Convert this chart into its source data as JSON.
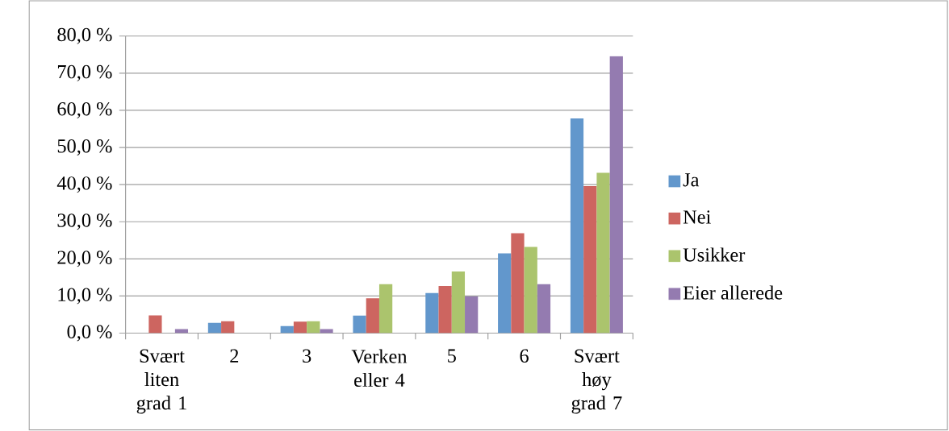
{
  "chart_data": {
    "type": "bar",
    "categories": [
      "Svært liten grad 1",
      "2",
      "3",
      "Verken eller 4",
      "5",
      "6",
      "Svært høy grad 7"
    ],
    "series": [
      {
        "name": "Ja",
        "color": "#6297cc",
        "values": [
          0,
          2.8,
          1.9,
          4.7,
          10.8,
          21.5,
          57.8
        ]
      },
      {
        "name": "Nei",
        "color": "#cd6560",
        "values": [
          4.8,
          3.2,
          3.1,
          9.4,
          12.7,
          26.9,
          39.6
        ]
      },
      {
        "name": "Usikker",
        "color": "#abc46d",
        "values": [
          0,
          0,
          3.2,
          13.2,
          16.6,
          23.2,
          43.2
        ]
      },
      {
        "name": "Eier allerede",
        "color": "#947bb0",
        "values": [
          1.1,
          0,
          1.1,
          0,
          9.9,
          13.2,
          74.6
        ]
      }
    ],
    "ylim": [
      0,
      80
    ],
    "yticks": [
      {
        "value": 0,
        "label": "0,0 %"
      },
      {
        "value": 10,
        "label": "10,0 %"
      },
      {
        "value": 20,
        "label": "20,0 %"
      },
      {
        "value": 30,
        "label": "30,0 %"
      },
      {
        "value": 40,
        "label": "40,0 %"
      },
      {
        "value": 50,
        "label": "50,0 %"
      },
      {
        "value": 60,
        "label": "60,0 %"
      },
      {
        "value": 70,
        "label": "70,0 %"
      },
      {
        "value": 80,
        "label": "80,0 %"
      }
    ],
    "grid": "y",
    "legend": "right"
  }
}
